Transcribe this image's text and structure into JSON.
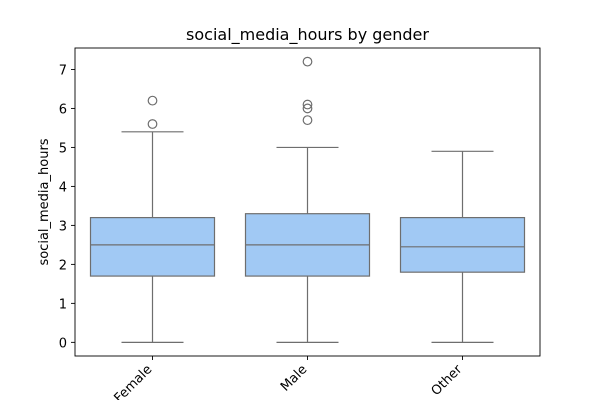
{
  "chart_data": {
    "type": "box",
    "title": "social_media_hours by gender",
    "xlabel": "",
    "ylabel": "social_media_hours",
    "ylim": [
      -0.35,
      7.55
    ],
    "yticks": [
      0,
      1,
      2,
      3,
      4,
      5,
      6,
      7
    ],
    "categories": [
      "Female",
      "Male",
      "Other"
    ],
    "grid": false,
    "box_color": "#a1c9f4",
    "line_color": "#6e6e6e",
    "boxes": [
      {
        "category": "Female",
        "whisker_low": 0.0,
        "q1": 1.7,
        "median": 2.5,
        "q3": 3.2,
        "whisker_high": 5.4,
        "outliers": [
          5.6,
          6.2
        ]
      },
      {
        "category": "Male",
        "whisker_low": 0.0,
        "q1": 1.7,
        "median": 2.5,
        "q3": 3.3,
        "whisker_high": 5.0,
        "outliers": [
          5.7,
          6.0,
          6.1,
          7.2
        ]
      },
      {
        "category": "Other",
        "whisker_low": 0.0,
        "q1": 1.8,
        "median": 2.45,
        "q3": 3.2,
        "whisker_high": 4.9,
        "outliers": []
      }
    ]
  }
}
